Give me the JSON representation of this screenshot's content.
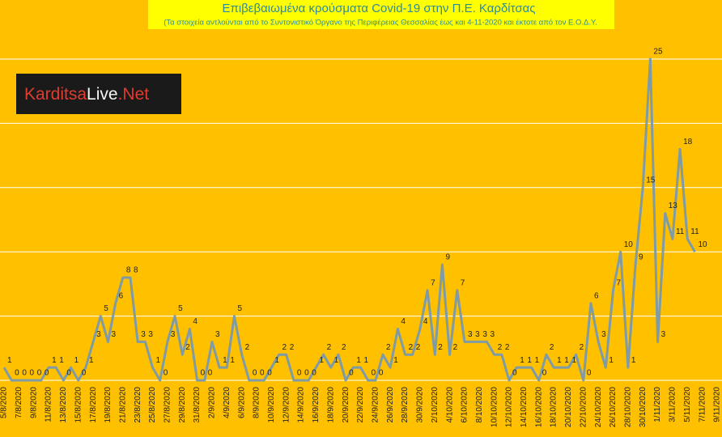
{
  "logo": {
    "part1": "Karditsa",
    "part2": "Live",
    "part3": ".Net"
  },
  "chart_data": {
    "type": "line",
    "title": "Επιβεβαιωμένα κρούσματα Covid-19 στην Π.Ε. Καρδίτσας",
    "subtitle": "(Τα στοιχεία αντλούνται από το Συντονιστικό Όργανο της Περιφέρειας Θεσσαλίας έως και 4-11-2020 και έκτοτε από τον Ε.Ο.Δ.Υ.",
    "categories": [
      "5/8/2020",
      null,
      "7/8/2020",
      null,
      "9/8/2020",
      null,
      "11/8/2020",
      null,
      "13/8/2020",
      null,
      "15/8/2020",
      null,
      "17/8/2020",
      null,
      "19/8/2020",
      null,
      "21/8/2020",
      null,
      "23/8/2020",
      null,
      "25/8/2020",
      null,
      "27/8/2020",
      null,
      "29/8/2020",
      null,
      "31/8/2020",
      null,
      "2/9/2020",
      null,
      "4/9/2020",
      null,
      "6/9/2020",
      null,
      "8/9/2020",
      null,
      "10/9/2020",
      null,
      "12/9/2020",
      null,
      "14/9/2020",
      null,
      "16/9/2020",
      null,
      "18/9/2020",
      null,
      "20/9/2020",
      null,
      "22/9/2020",
      null,
      "24/9/2020",
      null,
      "26/9/2020",
      null,
      "28/9/2020",
      null,
      "30/9/2020",
      null,
      "2/10/2020",
      null,
      "4/10/2020",
      null,
      "6/10/2020",
      null,
      "8/10/2020",
      null,
      "10/10/2020",
      null,
      "12/10/2020",
      null,
      "14/10/2020",
      null,
      "16/10/2020",
      null,
      "18/10/2020",
      null,
      "20/10/2020",
      null,
      "22/10/2020",
      null,
      "24/10/2020",
      null,
      "26/10/2020",
      null,
      "28/10/2020",
      null,
      "30/10/2020",
      null,
      "1/11/2020",
      null,
      "3/11/2020",
      null,
      "5/11/2020",
      null,
      "7/11/2020",
      null,
      "9/11/2020"
    ],
    "values": [
      1,
      0,
      0,
      0,
      0,
      0,
      1,
      1,
      0,
      1,
      0,
      1,
      3,
      5,
      3,
      6,
      8,
      8,
      3,
      3,
      1,
      0,
      3,
      5,
      2,
      4,
      0,
      0,
      3,
      1,
      1,
      5,
      2,
      0,
      0,
      0,
      1,
      2,
      2,
      0,
      0,
      0,
      1,
      2,
      1,
      2,
      0,
      1,
      1,
      0,
      0,
      2,
      1,
      4,
      2,
      2,
      4,
      7,
      2,
      9,
      2,
      7,
      3,
      3,
      3,
      3,
      2,
      2,
      0,
      1,
      1,
      1,
      0,
      2,
      1,
      1,
      1,
      2,
      0,
      6,
      3,
      1,
      7,
      10,
      1,
      9,
      15,
      25,
      3,
      13,
      11,
      18,
      11,
      10,
      null,
      null,
      null
    ],
    "color": "#7f9ba6",
    "ylim": [
      0,
      25
    ],
    "yticks": [
      0,
      5,
      10,
      15,
      20,
      25
    ],
    "grid": true
  }
}
